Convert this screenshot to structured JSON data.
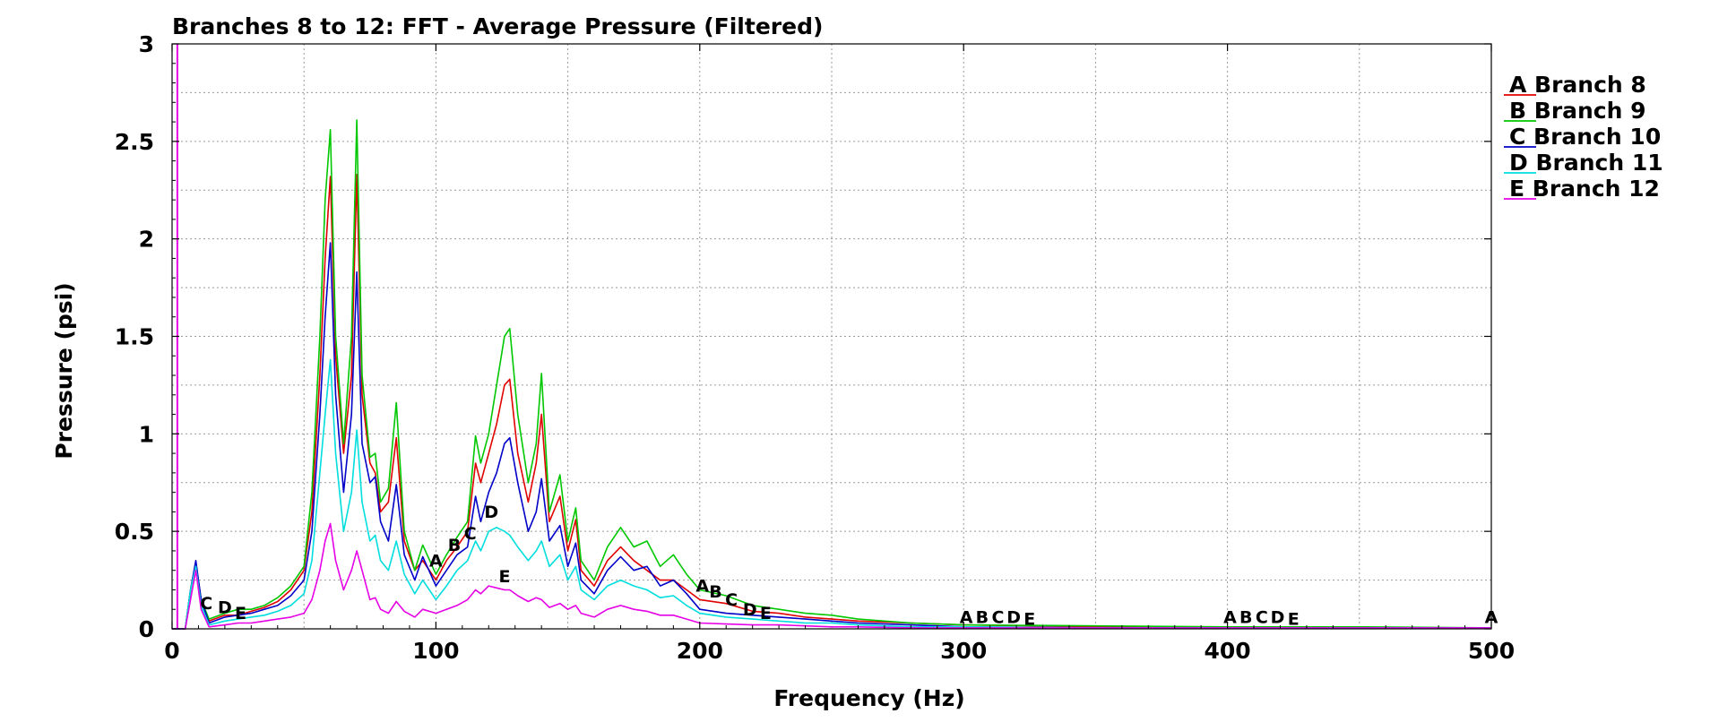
{
  "chart_data": {
    "type": "line",
    "title": "Branches 8 to 12: FFT - Average Pressure (Filtered)",
    "xlabel": "Frequency (Hz)",
    "ylabel": "Pressure (psi)",
    "xlim": [
      0,
      500
    ],
    "ylim": [
      0,
      3
    ],
    "x_ticks": [
      "0",
      "100",
      "200",
      "300",
      "400",
      "500"
    ],
    "y_ticks": [
      "0",
      "0.5",
      "1",
      "1.5",
      "2",
      "2.5",
      "3"
    ],
    "grid": true,
    "legend_position": "right",
    "series": [
      {
        "name": "Branch 8",
        "marker": "A",
        "color": "#e00000",
        "x": [
          0,
          5,
          7,
          9,
          11,
          14,
          20,
          25,
          30,
          35,
          40,
          45,
          50,
          53,
          56,
          58,
          60,
          62,
          65,
          68,
          70,
          72,
          75,
          77,
          79,
          82,
          85,
          88,
          92,
          95,
          100,
          104,
          108,
          112,
          115,
          117,
          120,
          123,
          126,
          128,
          131,
          135,
          138,
          140,
          143,
          147,
          150,
          153,
          155,
          160,
          165,
          170,
          175,
          180,
          185,
          190,
          195,
          200,
          210,
          220,
          230,
          240,
          250,
          260,
          280,
          300,
          350,
          400,
          450,
          500
        ],
        "y": [
          0,
          0,
          0.2,
          0.33,
          0.15,
          0.04,
          0.07,
          0.07,
          0.09,
          0.11,
          0.14,
          0.2,
          0.3,
          0.6,
          1.3,
          1.9,
          2.32,
          1.4,
          0.9,
          1.3,
          2.33,
          1.2,
          0.85,
          0.8,
          0.6,
          0.65,
          0.98,
          0.45,
          0.3,
          0.35,
          0.25,
          0.35,
          0.42,
          0.5,
          0.85,
          0.75,
          0.9,
          1.05,
          1.25,
          1.28,
          0.9,
          0.65,
          0.85,
          1.1,
          0.55,
          0.68,
          0.4,
          0.56,
          0.3,
          0.22,
          0.35,
          0.42,
          0.35,
          0.3,
          0.25,
          0.25,
          0.2,
          0.15,
          0.13,
          0.09,
          0.08,
          0.06,
          0.05,
          0.04,
          0.03,
          0.02,
          0.01,
          0.01,
          0.005,
          0.005
        ]
      },
      {
        "name": "Branch 9",
        "marker": "B",
        "color": "#00c800",
        "x": [
          0,
          5,
          7,
          9,
          11,
          14,
          20,
          25,
          30,
          35,
          40,
          45,
          50,
          53,
          56,
          58,
          60,
          62,
          65,
          68,
          70,
          72,
          75,
          77,
          79,
          82,
          85,
          88,
          92,
          95,
          100,
          104,
          108,
          112,
          115,
          117,
          120,
          123,
          126,
          128,
          131,
          135,
          138,
          140,
          143,
          147,
          150,
          153,
          155,
          160,
          165,
          170,
          175,
          180,
          185,
          190,
          195,
          200,
          210,
          220,
          230,
          240,
          250,
          260,
          280,
          300,
          350,
          400,
          450,
          500
        ],
        "y": [
          0,
          0,
          0.2,
          0.34,
          0.15,
          0.05,
          0.08,
          0.1,
          0.1,
          0.12,
          0.16,
          0.22,
          0.32,
          0.7,
          1.5,
          2.2,
          2.56,
          1.5,
          0.95,
          1.5,
          2.61,
          1.3,
          0.88,
          0.9,
          0.65,
          0.72,
          1.16,
          0.5,
          0.3,
          0.43,
          0.28,
          0.38,
          0.47,
          0.55,
          0.99,
          0.85,
          1.0,
          1.25,
          1.5,
          1.54,
          1.1,
          0.75,
          0.95,
          1.31,
          0.6,
          0.79,
          0.45,
          0.62,
          0.35,
          0.25,
          0.42,
          0.52,
          0.42,
          0.45,
          0.32,
          0.38,
          0.28,
          0.2,
          0.17,
          0.12,
          0.1,
          0.08,
          0.07,
          0.05,
          0.03,
          0.02,
          0.015,
          0.01,
          0.01,
          0.005
        ]
      },
      {
        "name": "Branch 10",
        "marker": "C",
        "color": "#0000c8",
        "x": [
          0,
          5,
          7,
          9,
          11,
          14,
          20,
          25,
          30,
          35,
          40,
          45,
          50,
          53,
          56,
          58,
          60,
          62,
          65,
          68,
          70,
          72,
          75,
          77,
          79,
          82,
          85,
          88,
          92,
          95,
          100,
          104,
          108,
          112,
          115,
          117,
          120,
          123,
          126,
          128,
          131,
          135,
          138,
          140,
          143,
          147,
          150,
          153,
          155,
          160,
          165,
          170,
          175,
          180,
          185,
          190,
          195,
          200,
          210,
          220,
          230,
          240,
          250,
          260,
          280,
          300,
          350,
          400,
          450,
          500
        ],
        "y": [
          0,
          0,
          0.2,
          0.35,
          0.15,
          0.03,
          0.06,
          0.07,
          0.08,
          0.1,
          0.12,
          0.17,
          0.25,
          0.5,
          1.1,
          1.6,
          1.98,
          1.2,
          0.7,
          1.1,
          1.83,
          0.95,
          0.75,
          0.78,
          0.55,
          0.45,
          0.74,
          0.38,
          0.25,
          0.37,
          0.22,
          0.3,
          0.38,
          0.42,
          0.68,
          0.55,
          0.7,
          0.8,
          0.95,
          0.98,
          0.75,
          0.5,
          0.6,
          0.77,
          0.45,
          0.53,
          0.32,
          0.44,
          0.25,
          0.18,
          0.3,
          0.37,
          0.3,
          0.32,
          0.22,
          0.25,
          0.18,
          0.1,
          0.08,
          0.07,
          0.06,
          0.05,
          0.04,
          0.03,
          0.02,
          0.01,
          0.005,
          0.005,
          0.005,
          0.005
        ]
      },
      {
        "name": "Branch 11",
        "marker": "D",
        "color": "#00dede",
        "x": [
          0,
          5,
          7,
          9,
          11,
          14,
          20,
          25,
          30,
          35,
          40,
          45,
          50,
          53,
          56,
          58,
          60,
          62,
          65,
          68,
          70,
          72,
          75,
          77,
          79,
          82,
          85,
          88,
          92,
          95,
          100,
          104,
          108,
          112,
          115,
          117,
          120,
          123,
          126,
          128,
          131,
          135,
          138,
          140,
          143,
          147,
          150,
          153,
          155,
          160,
          165,
          170,
          175,
          180,
          185,
          190,
          195,
          200,
          210,
          220,
          230,
          240,
          250,
          260,
          280,
          300,
          350,
          400,
          450,
          500
        ],
        "y": [
          0,
          0,
          0.2,
          0.32,
          0.12,
          0.02,
          0.04,
          0.05,
          0.06,
          0.07,
          0.09,
          0.12,
          0.18,
          0.35,
          0.8,
          1.1,
          1.38,
          0.9,
          0.5,
          0.7,
          1.02,
          0.65,
          0.45,
          0.48,
          0.35,
          0.3,
          0.45,
          0.28,
          0.18,
          0.25,
          0.15,
          0.22,
          0.3,
          0.35,
          0.45,
          0.4,
          0.5,
          0.52,
          0.5,
          0.48,
          0.42,
          0.35,
          0.4,
          0.45,
          0.32,
          0.38,
          0.25,
          0.32,
          0.2,
          0.15,
          0.22,
          0.25,
          0.22,
          0.2,
          0.16,
          0.17,
          0.12,
          0.08,
          0.06,
          0.05,
          0.04,
          0.03,
          0.03,
          0.02,
          0.01,
          0.01,
          0.005,
          0.005,
          0.005,
          0.005
        ]
      },
      {
        "name": "Branch 12",
        "marker": "E",
        "color": "#e600e6",
        "x": [
          0,
          5,
          7,
          9,
          11,
          14,
          20,
          25,
          30,
          35,
          40,
          45,
          50,
          53,
          56,
          58,
          60,
          62,
          65,
          68,
          70,
          72,
          75,
          77,
          79,
          82,
          85,
          88,
          92,
          95,
          100,
          104,
          108,
          112,
          115,
          117,
          120,
          123,
          126,
          128,
          131,
          135,
          138,
          140,
          143,
          147,
          150,
          153,
          155,
          160,
          165,
          170,
          175,
          180,
          185,
          190,
          195,
          200,
          210,
          220,
          230,
          240,
          250,
          260,
          280,
          300,
          350,
          400,
          450,
          500
        ],
        "y": [
          0,
          0,
          0.15,
          0.3,
          0.1,
          0.01,
          0.02,
          0.03,
          0.03,
          0.04,
          0.05,
          0.06,
          0.08,
          0.15,
          0.3,
          0.45,
          0.54,
          0.35,
          0.2,
          0.3,
          0.4,
          0.3,
          0.15,
          0.16,
          0.1,
          0.08,
          0.14,
          0.09,
          0.06,
          0.1,
          0.08,
          0.1,
          0.12,
          0.15,
          0.2,
          0.18,
          0.22,
          0.21,
          0.2,
          0.2,
          0.17,
          0.14,
          0.16,
          0.15,
          0.11,
          0.13,
          0.1,
          0.12,
          0.08,
          0.06,
          0.1,
          0.12,
          0.1,
          0.09,
          0.07,
          0.07,
          0.05,
          0.03,
          0.025,
          0.02,
          0.02,
          0.015,
          0.01,
          0.01,
          0.005,
          0.005,
          0.005,
          0.005,
          0.005,
          0.005
        ]
      }
    ],
    "curve_markers": [
      {
        "label": "C",
        "x": 13,
        "y": 0.1
      },
      {
        "label": "D",
        "x": 20,
        "y": 0.08
      },
      {
        "label": "E",
        "x": 26,
        "y": 0.05
      },
      {
        "label": "A",
        "x": 100,
        "y": 0.32
      },
      {
        "label": "B",
        "x": 107,
        "y": 0.4
      },
      {
        "label": "C",
        "x": 113,
        "y": 0.46
      },
      {
        "label": "D",
        "x": 121,
        "y": 0.57
      },
      {
        "label": "E",
        "x": 126,
        "y": 0.24
      },
      {
        "label": "A",
        "x": 201,
        "y": 0.19
      },
      {
        "label": "B",
        "x": 206,
        "y": 0.16
      },
      {
        "label": "C",
        "x": 212,
        "y": 0.12
      },
      {
        "label": "D",
        "x": 219,
        "y": 0.07
      },
      {
        "label": "E",
        "x": 225,
        "y": 0.05
      },
      {
        "label": "A",
        "x": 301,
        "y": 0.03
      },
      {
        "label": "B",
        "x": 307,
        "y": 0.03
      },
      {
        "label": "C",
        "x": 313,
        "y": 0.03
      },
      {
        "label": "D",
        "x": 319,
        "y": 0.03
      },
      {
        "label": "E",
        "x": 325,
        "y": 0.02
      },
      {
        "label": "A",
        "x": 401,
        "y": 0.03
      },
      {
        "label": "B",
        "x": 407,
        "y": 0.03
      },
      {
        "label": "C",
        "x": 413,
        "y": 0.03
      },
      {
        "label": "D",
        "x": 419,
        "y": 0.03
      },
      {
        "label": "E",
        "x": 425,
        "y": 0.02
      },
      {
        "label": "A",
        "x": 500,
        "y": 0.03
      }
    ],
    "reference_line": {
      "x": 2,
      "color": "#e600e6"
    }
  }
}
